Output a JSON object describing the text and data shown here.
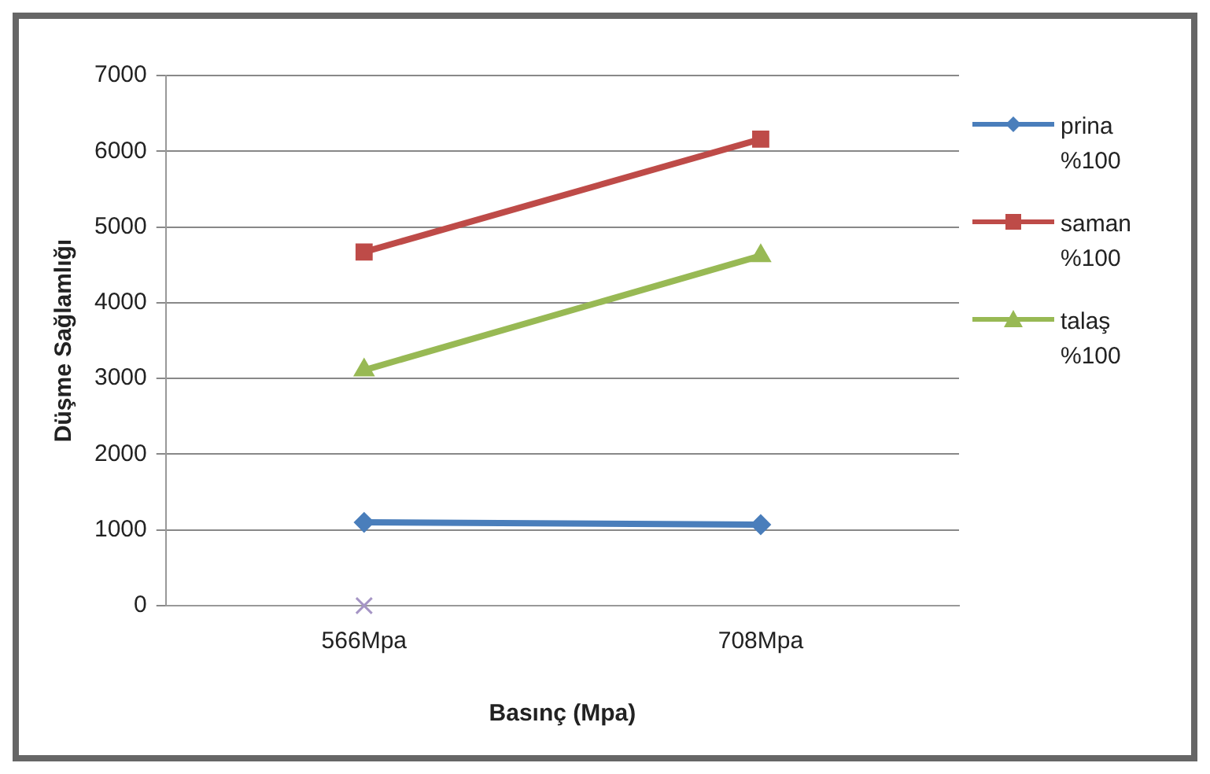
{
  "chart_data": {
    "type": "line",
    "xlabel": "Basınç (Mpa)",
    "ylabel": "Düşme Sağlamlığı",
    "categories": [
      "566Mpa",
      "708Mpa"
    ],
    "series": [
      {
        "name": "prina %100",
        "color": "#4a7ebb",
        "marker": "diamond",
        "values": [
          1100,
          1070
        ]
      },
      {
        "name": "saman %100",
        "color": "#be4b48",
        "marker": "square",
        "values": [
          4670,
          6160
        ]
      },
      {
        "name": "talaş %100",
        "color": "#98b954",
        "marker": "triangle",
        "values": [
          3110,
          4620
        ]
      },
      {
        "type": "scatter",
        "color": "#a595c5",
        "marker": "cross",
        "values": [
          0,
          null
        ]
      }
    ],
    "ylim": [
      0,
      7000
    ],
    "yticks": [
      0,
      1000,
      2000,
      3000,
      4000,
      5000,
      6000,
      7000
    ],
    "grid": "y",
    "legend": "right"
  }
}
